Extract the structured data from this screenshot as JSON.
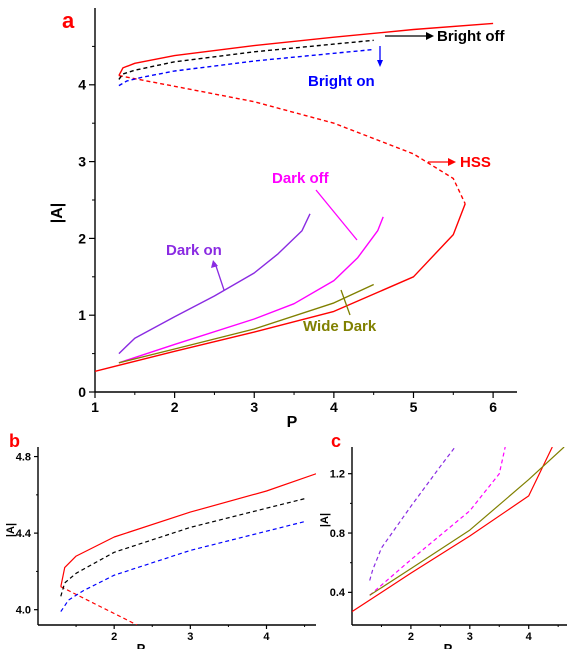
{
  "colors": {
    "axis": "#000000",
    "panel_letter": "#ff0000",
    "bright_off": "#000000",
    "bright_on": "#0000ff",
    "hss": "#ff0000",
    "dark_off": "#ff00ff",
    "dark_on": "#8a2be2",
    "wide_dark": "#808000"
  },
  "chart_data": [
    {
      "panel": "a",
      "type": "line",
      "xlabel": "P",
      "ylabel": "|A|",
      "xlim": [
        1,
        6.3
      ],
      "ylim": [
        0,
        5
      ],
      "xticks": [
        1,
        2,
        3,
        4,
        5,
        6
      ],
      "yticks": [
        0,
        1,
        2,
        3,
        4
      ],
      "annotations": [
        "Bright off",
        "Bright on",
        "HSS",
        "Dark off",
        "Dark on",
        "Wide Dark"
      ],
      "series": [
        {
          "key": "hss_upper",
          "color": "#ff0000",
          "dash": "solid",
          "x": [
            1.3,
            1.35,
            1.5,
            2.0,
            3.0,
            4.0,
            5.0,
            6.0
          ],
          "y": [
            4.12,
            4.22,
            4.28,
            4.38,
            4.51,
            4.62,
            4.72,
            4.8
          ]
        },
        {
          "key": "hss_middle",
          "color": "#ff0000",
          "dash": "dashed",
          "x": [
            1.3,
            1.5,
            2.0,
            3.0,
            4.0,
            5.0,
            5.5,
            5.65
          ],
          "y": [
            4.12,
            4.08,
            3.98,
            3.78,
            3.5,
            3.1,
            2.78,
            2.45
          ]
        },
        {
          "key": "hss_lower",
          "color": "#ff0000",
          "dash": "solid",
          "x": [
            1.0,
            1.5,
            2.0,
            3.0,
            4.0,
            5.0,
            5.5,
            5.65
          ],
          "y": [
            0.27,
            0.4,
            0.53,
            0.78,
            1.05,
            1.5,
            2.05,
            2.45
          ]
        },
        {
          "key": "bright_off",
          "color": "#000000",
          "dash": "dashed",
          "x": [
            1.3,
            1.35,
            1.5,
            2.0,
            3.0,
            4.0,
            4.5
          ],
          "y": [
            4.07,
            4.14,
            4.19,
            4.3,
            4.43,
            4.53,
            4.58
          ]
        },
        {
          "key": "bright_on",
          "color": "#0000ff",
          "dash": "dashed",
          "x": [
            1.3,
            1.4,
            1.6,
            2.0,
            3.0,
            4.0,
            4.5
          ],
          "y": [
            3.99,
            4.05,
            4.1,
            4.18,
            4.31,
            4.41,
            4.46
          ]
        },
        {
          "key": "dark_on",
          "color": "#8a2be2",
          "dash": "solid",
          "x": [
            1.3,
            1.5,
            2.0,
            2.5,
            3.0,
            3.3,
            3.6,
            3.7
          ],
          "y": [
            0.5,
            0.7,
            0.98,
            1.25,
            1.55,
            1.8,
            2.1,
            2.32
          ]
        },
        {
          "key": "dark_off",
          "color": "#ff00ff",
          "dash": "solid",
          "x": [
            1.3,
            2.0,
            3.0,
            3.5,
            4.0,
            4.3,
            4.55,
            4.62
          ],
          "y": [
            0.38,
            0.62,
            0.95,
            1.15,
            1.45,
            1.75,
            2.1,
            2.28
          ]
        },
        {
          "key": "wide_dark",
          "color": "#808000",
          "dash": "solid",
          "x": [
            1.3,
            2.0,
            3.0,
            4.0,
            4.5
          ],
          "y": [
            0.38,
            0.56,
            0.82,
            1.16,
            1.4
          ]
        }
      ]
    },
    {
      "panel": "b",
      "type": "line",
      "xlabel": "P",
      "ylabel": "|A|",
      "xlim": [
        1.0,
        4.65
      ],
      "ylim": [
        3.92,
        4.85
      ],
      "xticks": [
        2,
        3,
        4
      ],
      "yticks": [
        4.0,
        4.4,
        4.8
      ],
      "yticklabels": [
        "4.0",
        "4.4",
        "4.8"
      ],
      "series": [
        {
          "key": "hss_upper",
          "color": "#ff0000",
          "dash": "solid",
          "x": [
            1.3,
            1.35,
            1.5,
            2.0,
            3.0,
            4.0,
            4.65
          ],
          "y": [
            4.12,
            4.22,
            4.28,
            4.38,
            4.51,
            4.62,
            4.71
          ]
        },
        {
          "key": "hss_middle",
          "color": "#ff0000",
          "dash": "dashed",
          "x": [
            1.3,
            1.5,
            1.8,
            2.1,
            2.3
          ],
          "y": [
            4.12,
            4.08,
            4.02,
            3.96,
            3.92
          ]
        },
        {
          "key": "bright_off",
          "color": "#000000",
          "dash": "dashed",
          "x": [
            1.3,
            1.35,
            1.5,
            2.0,
            3.0,
            4.0,
            4.5
          ],
          "y": [
            4.07,
            4.14,
            4.19,
            4.3,
            4.43,
            4.53,
            4.58
          ]
        },
        {
          "key": "bright_on",
          "color": "#0000ff",
          "dash": "dashed",
          "x": [
            1.3,
            1.4,
            1.6,
            2.0,
            3.0,
            4.0,
            4.5
          ],
          "y": [
            3.99,
            4.05,
            4.1,
            4.18,
            4.31,
            4.41,
            4.46
          ]
        }
      ]
    },
    {
      "panel": "c",
      "type": "line",
      "xlabel": "P",
      "ylabel": "|A|",
      "xlim": [
        1.0,
        4.65
      ],
      "ylim": [
        0.18,
        1.38
      ],
      "xticks": [
        2,
        3,
        4
      ],
      "yticks": [
        0.4,
        0.8,
        1.2
      ],
      "yticklabels": [
        "0.4",
        "0.8",
        "1.2"
      ],
      "series": [
        {
          "key": "dark_on",
          "color": "#8a2be2",
          "dash": "dashed",
          "x": [
            1.3,
            1.35,
            1.5,
            2.0,
            2.5,
            2.75
          ],
          "y": [
            0.48,
            0.55,
            0.7,
            0.98,
            1.25,
            1.38
          ]
        },
        {
          "key": "dark_off",
          "color": "#ff00ff",
          "dash": "dashed",
          "x": [
            1.3,
            2.0,
            3.0,
            3.5,
            3.6
          ],
          "y": [
            0.38,
            0.62,
            0.95,
            1.2,
            1.38
          ]
        },
        {
          "key": "hss_lower",
          "color": "#ff0000",
          "dash": "solid",
          "x": [
            1.0,
            1.5,
            2.0,
            3.0,
            4.0,
            4.4
          ],
          "y": [
            0.27,
            0.4,
            0.53,
            0.78,
            1.05,
            1.38
          ]
        },
        {
          "key": "wide_dark",
          "color": "#808000",
          "dash": "solid",
          "x": [
            1.3,
            2.0,
            3.0,
            4.0,
            4.6
          ],
          "y": [
            0.38,
            0.56,
            0.82,
            1.16,
            1.38
          ]
        }
      ]
    }
  ]
}
